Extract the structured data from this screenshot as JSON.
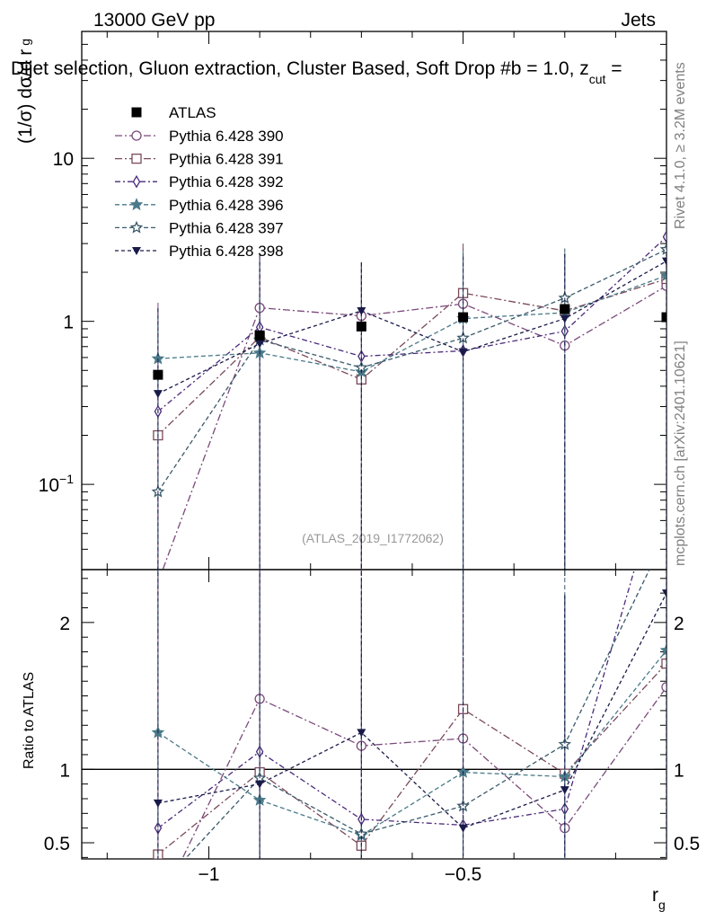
{
  "header": {
    "left": "13000 GeV pp",
    "right": "Jets"
  },
  "chart_data": {
    "type": "scatter",
    "title": "Dijet selection, Gluon extraction, Cluster Based, Soft Drop #b = 1.0, z",
    "title_sub": "cut",
    "title_tail": " =",
    "ylabel_main": "(1/σ) dσ/d r",
    "ylabel_main_sub": "g",
    "ylabel_ratio": "Ratio to ATLAS",
    "xlabel": "r",
    "xlabel_sub": "g",
    "xlim": [
      -1.25,
      -0.1
    ],
    "ylim_main": [
      0.03,
      60
    ],
    "ylim_ratio": [
      0.39,
      2.36
    ],
    "x_ticks": [
      {
        "value": -1,
        "label": "−1"
      },
      {
        "value": -0.5,
        "label": "−0.5"
      }
    ],
    "y_ticks_main": [
      {
        "value": 0.1,
        "base": "10",
        "exp": "−1"
      },
      {
        "value": 1,
        "base": "1",
        "exp": ""
      },
      {
        "value": 10,
        "base": "10",
        "exp": ""
      }
    ],
    "y_ticks_ratio": [
      {
        "value": 0.5,
        "label": "0.5"
      },
      {
        "value": 1,
        "label": "1"
      },
      {
        "value": 2,
        "label": "2"
      }
    ],
    "x": [
      -1.1,
      -0.9,
      -0.7,
      -0.5,
      -0.3,
      -0.1
    ],
    "bin_half_width": 0.1,
    "reference": {
      "name": "ATLAS",
      "color": "#000000",
      "marker": "filled-square",
      "values": [
        0.47,
        0.82,
        0.93,
        1.06,
        1.19,
        1.06
      ]
    },
    "series": [
      {
        "name": "Pythia 6.428 390",
        "color": "#7a4a7a",
        "dash": "8,3,2,3",
        "marker": "open-circle",
        "values": [
          0.025,
          1.21,
          1.08,
          1.28,
          0.71,
          1.65
        ],
        "ratio": [
          0.05,
          1.48,
          1.16,
          1.21,
          0.6,
          1.56
        ],
        "err_up": [
          1.3,
          2.6,
          2.3,
          2.8,
          2.6,
          3.3
        ]
      },
      {
        "name": "Pythia 6.428 391",
        "color": "#7a4a5a",
        "dash": "8,3,2,3",
        "marker": "open-square",
        "values": [
          0.2,
          0.8,
          0.44,
          1.49,
          1.16,
          1.82
        ],
        "ratio": [
          0.42,
          0.98,
          0.48,
          1.41,
          0.97,
          1.72
        ],
        "err_up": [
          1.2,
          2.4,
          2.2,
          3.0,
          2.6,
          3.6
        ]
      },
      {
        "name": "Pythia 6.428 392",
        "color": "#4a2a7a",
        "dash": "6,3,2,3",
        "marker": "open-diamond",
        "values": [
          0.28,
          0.92,
          0.61,
          0.66,
          0.87,
          3.3
        ],
        "ratio": [
          0.6,
          1.12,
          0.66,
          0.62,
          0.73,
          3.11
        ],
        "err_up": [
          1.2,
          2.6,
          2.3,
          2.5,
          2.6,
          6.5
        ]
      },
      {
        "name": "Pythia 6.428 396",
        "color": "#4a7a8a",
        "dash": "5,3",
        "marker": "filled-star",
        "values": [
          0.59,
          0.64,
          0.49,
          1.04,
          1.13,
          1.91
        ],
        "ratio": [
          1.25,
          0.79,
          0.55,
          0.98,
          0.95,
          1.81
        ],
        "err_up": [
          1.2,
          2.2,
          2.0,
          2.7,
          2.6,
          3.6
        ]
      },
      {
        "name": "Pythia 6.428 397",
        "color": "#3a5a6a",
        "dash": "5,3",
        "marker": "open-star",
        "values": [
          0.09,
          0.77,
          0.52,
          0.79,
          1.39,
          2.76
        ],
        "ratio": [
          0.19,
          0.94,
          0.56,
          0.75,
          1.17,
          2.6
        ],
        "err_up": [
          1.2,
          2.4,
          2.1,
          2.6,
          2.8,
          5.5
        ]
      },
      {
        "name": "Pythia 6.428 398",
        "color": "#1a1a4a",
        "dash": "4,3",
        "marker": "filled-triangle-down",
        "values": [
          0.36,
          0.73,
          1.16,
          0.65,
          1.04,
          2.34
        ],
        "ratio": [
          0.77,
          0.9,
          1.25,
          0.6,
          0.86,
          2.2
        ],
        "err_up": [
          1.2,
          2.3,
          2.3,
          2.5,
          2.6,
          4.5
        ]
      }
    ],
    "watermark": "(ATLAS_2019_I1772062)",
    "side_text_top": "Rivet 4.1.0, ≥ 3.2M events",
    "side_text_bottom": "mcplots.cern.ch [arXiv:2401.10621]"
  }
}
